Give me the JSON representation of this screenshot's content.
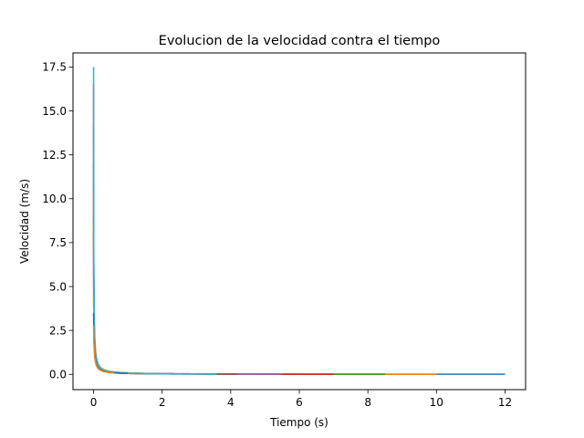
{
  "chart_data": {
    "type": "line",
    "title": "Evolucion de la velocidad contra el tiempo",
    "xlabel": "Tiempo (s)",
    "ylabel": "Velocidad (m/s)",
    "xlim": [
      -0.6,
      12.6
    ],
    "ylim": [
      -0.87,
      18.3
    ],
    "xticks": [
      0,
      2,
      4,
      6,
      8,
      10,
      12
    ],
    "xtick_labels": [
      "0",
      "2",
      "4",
      "6",
      "8",
      "10",
      "12"
    ],
    "yticks": [
      0.0,
      2.5,
      5.0,
      7.5,
      10.0,
      12.5,
      15.0,
      17.5
    ],
    "ytick_labels": [
      "0.0",
      "2.5",
      "5.0",
      "7.5",
      "10.0",
      "12.5",
      "15.0",
      "17.5"
    ],
    "grid": false,
    "legend": "none",
    "series": [
      {
        "color": "#1f77b4",
        "v0": 12.0,
        "t_end": 12.0
      },
      {
        "color": "#ff7f0e",
        "v0": 10.5,
        "t_end": 10.0
      },
      {
        "color": "#2ca02c",
        "v0": 9.0,
        "t_end": 8.5
      },
      {
        "color": "#d62728",
        "v0": 16.5,
        "t_end": 7.0
      },
      {
        "color": "#9467bd",
        "v0": 14.2,
        "t_end": 5.5
      },
      {
        "color": "#8c564b",
        "v0": 8.0,
        "t_end": 4.2
      },
      {
        "color": "#e377c2",
        "v0": 7.0,
        "t_end": 3.2
      },
      {
        "color": "#7f7f7f",
        "v0": 6.0,
        "t_end": 2.4
      },
      {
        "color": "#bcbd22",
        "v0": 4.5,
        "t_end": 1.6
      },
      {
        "color": "#17becf",
        "v0": 17.5,
        "t_end": 3.6
      },
      {
        "color": "#1f77b4",
        "v0": 3.5,
        "t_end": 1.0
      },
      {
        "color": "#ff7f0e",
        "v0": 2.8,
        "t_end": 0.6
      }
    ]
  }
}
